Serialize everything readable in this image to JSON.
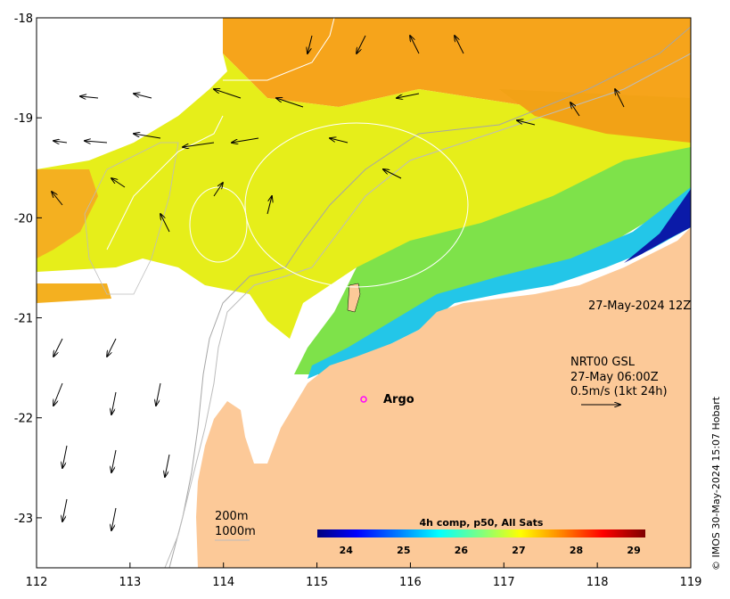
{
  "map": {
    "lon_range": [
      112,
      119
    ],
    "lat_range": [
      -23.5,
      -18
    ],
    "x_ticks": [
      "112",
      "113",
      "114",
      "115",
      "116",
      "117",
      "118",
      "119"
    ],
    "y_ticks": [
      "-18",
      "-19",
      "-20",
      "-21",
      "-22",
      "-23"
    ],
    "timestamp": "27-May-2024 12Z",
    "current_label": [
      "NRT00 GSL",
      "27-May 06:00Z",
      "0.5m/s (1kt 24h)"
    ],
    "argo_label": "Argo",
    "argo_marker_color": "#ff00ff",
    "bathy_labels": [
      "200m",
      "1000m"
    ],
    "land_color": "#fcc998",
    "colorbar": {
      "title": "4h comp, p50, All Sats",
      "ticks": [
        "24",
        "25",
        "26",
        "27",
        "28",
        "29"
      ],
      "range": [
        23.5,
        29.2
      ],
      "colors": [
        "#00007f",
        "#0000ff",
        "#007fff",
        "#00ffff",
        "#7fff7f",
        "#ffff00",
        "#ff7f00",
        "#ff0000",
        "#7f0000"
      ]
    },
    "credit": "© IMOS 30-May-2024 15:07 Hobart"
  }
}
